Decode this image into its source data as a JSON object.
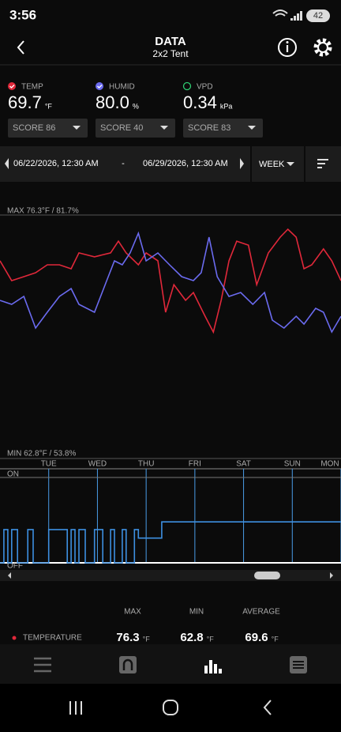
{
  "status_bar": {
    "time": "3:56",
    "battery": "42"
  },
  "header": {
    "title": "DATA",
    "subtitle": "2x2 Tent"
  },
  "readings": [
    {
      "label": "TEMP",
      "value": "69.7",
      "unit": "°F",
      "score": "SCORE 86",
      "color": "#e0283a"
    },
    {
      "label": "HUMID",
      "value": "80.0",
      "unit": "%",
      "score": "SCORE 40",
      "color": "#6b6bf0"
    },
    {
      "label": "VPD",
      "value": "0.34",
      "unit": "kPa",
      "score": "SCORE 83",
      "color": "#2ecc71"
    }
  ],
  "range": {
    "start": "06/22/2026, 12:30 AM",
    "separator": "-",
    "end": "06/29/2026, 12:30 AM",
    "period": "WEEK"
  },
  "chart_data": [
    {
      "type": "line",
      "max_label": "MAX 76.3°F / 81.7%",
      "min_label": "MIN 62.8°F / 53.8%",
      "xlim": [
        0,
        7
      ],
      "xticks": [
        {
          "value": 1,
          "label": "TUE"
        },
        {
          "value": 2,
          "label": "WED"
        },
        {
          "value": 3,
          "label": "THU"
        },
        {
          "value": 4,
          "label": "FRI"
        },
        {
          "value": 5,
          "label": "SAT"
        },
        {
          "value": 6,
          "label": "SUN"
        },
        {
          "value": 7,
          "label": "MON"
        }
      ],
      "ylim": [
        62.8,
        76.3
      ],
      "y2lim": [
        53.8,
        81.7
      ],
      "series": [
        {
          "name": "TEMP",
          "color": "#e0283a",
          "x": [
            0,
            0.24,
            0.49,
            0.73,
            0.97,
            1.22,
            1.46,
            1.62,
            1.94,
            2.27,
            2.43,
            2.59,
            2.84,
            3.0,
            3.24,
            3.4,
            3.57,
            3.81,
            3.97,
            4.21,
            4.38,
            4.54,
            4.7,
            4.86,
            5.1,
            5.27,
            5.51,
            5.75,
            5.91,
            6.08,
            6.24,
            6.4,
            6.64,
            6.81,
            7.0
          ],
          "values": [
            73.76,
            72.66,
            72.88,
            73.1,
            73.54,
            73.54,
            73.32,
            74.2,
            73.98,
            74.2,
            74.85,
            74.2,
            73.54,
            74.2,
            73.76,
            70.91,
            72.44,
            71.57,
            72.0,
            70.69,
            69.81,
            71.57,
            73.76,
            74.85,
            74.63,
            72.44,
            74.2,
            75.07,
            75.51,
            75.07,
            73.32,
            73.54,
            74.42,
            73.76,
            72.66
          ]
        },
        {
          "name": "HUMID",
          "color": "#6b6bf0",
          "axis": "y2",
          "x": [
            0,
            0.24,
            0.49,
            0.73,
            0.97,
            1.22,
            1.46,
            1.62,
            1.94,
            2.19,
            2.35,
            2.51,
            2.67,
            2.84,
            3.0,
            3.24,
            3.48,
            3.73,
            3.97,
            4.13,
            4.29,
            4.46,
            4.7,
            4.94,
            5.19,
            5.43,
            5.59,
            5.83,
            6.08,
            6.24,
            6.48,
            6.64,
            6.81,
            7.0
          ],
          "values": [
            71.92,
            71.46,
            72.37,
            68.75,
            70.56,
            72.37,
            73.27,
            71.46,
            70.56,
            74.18,
            76.45,
            75.99,
            77.35,
            79.62,
            76.45,
            77.35,
            75.99,
            74.63,
            74.18,
            75.09,
            79.16,
            74.63,
            72.37,
            72.82,
            71.46,
            72.82,
            69.65,
            68.75,
            70.1,
            69.2,
            71.01,
            70.56,
            68.29,
            70.1
          ]
        }
      ]
    },
    {
      "type": "step",
      "xlim": [
        0,
        7
      ],
      "ylim": [
        0,
        1
      ],
      "yticks": [
        {
          "value": 1,
          "label": "ON"
        },
        {
          "value": 0,
          "label": "OFF"
        }
      ],
      "series": [
        {
          "color": "#3d8fe0",
          "x": [
            0,
            0.08,
            0.16,
            0.24,
            0.36,
            0.57,
            0.68,
            1.0,
            1.38,
            1.46,
            1.54,
            1.62,
            1.75,
            1.94,
            2.11,
            2.27,
            2.35,
            2.51,
            2.59,
            2.76,
            2.84,
            3.32,
            7.0
          ],
          "values": [
            0,
            0.39,
            0,
            0.39,
            0,
            0.39,
            0,
            0.39,
            0,
            0.39,
            0,
            0.39,
            0,
            0.39,
            0,
            0.39,
            0,
            0.39,
            0,
            0.39,
            0.29,
            0.48,
            0.48
          ]
        }
      ]
    }
  ],
  "stats": {
    "headers": [
      "MAX",
      "MIN",
      "AVERAGE"
    ],
    "rows": [
      {
        "name": "TEMPERATURE",
        "color": "#e0283a",
        "max": "76.3",
        "min": "62.8",
        "average": "69.6",
        "unit": "°F"
      }
    ]
  }
}
